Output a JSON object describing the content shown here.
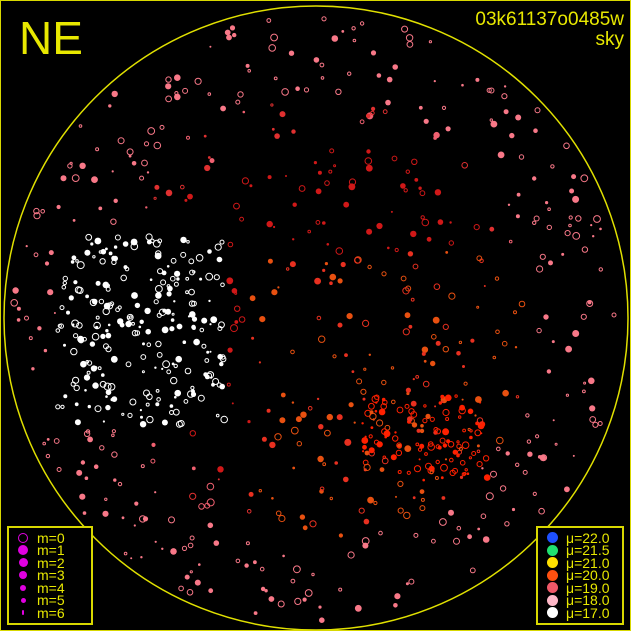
{
  "direction_label": "NE",
  "frame_id": "03k61137o0485w",
  "frame_type": "sky",
  "magnitude_legend": [
    {
      "label": "m=0",
      "size": 0
    },
    {
      "label": "m=1",
      "size": 1
    },
    {
      "label": "m=2",
      "size": 2
    },
    {
      "label": "m=3",
      "size": 3
    },
    {
      "label": "m=4",
      "size": 4
    },
    {
      "label": "m=5",
      "size": 5
    },
    {
      "label": "m=6",
      "size": 6
    }
  ],
  "magnitude_color": "#e000e0",
  "sky_brightness_legend": [
    {
      "label": "μ=22.0",
      "color": "#1e50ff"
    },
    {
      "label": "μ=21.5",
      "color": "#20e070"
    },
    {
      "label": "μ=21.0",
      "color": "#ffe000"
    },
    {
      "label": "μ=20.0",
      "color": "#ff5010"
    },
    {
      "label": "μ=19.0",
      "color": "#f05868"
    },
    {
      "label": "μ=18.0",
      "color": "#ffb8c8"
    },
    {
      "label": "μ=17.0",
      "color": "#ffffff"
    }
  ],
  "horizon_color": "#e0e000"
}
